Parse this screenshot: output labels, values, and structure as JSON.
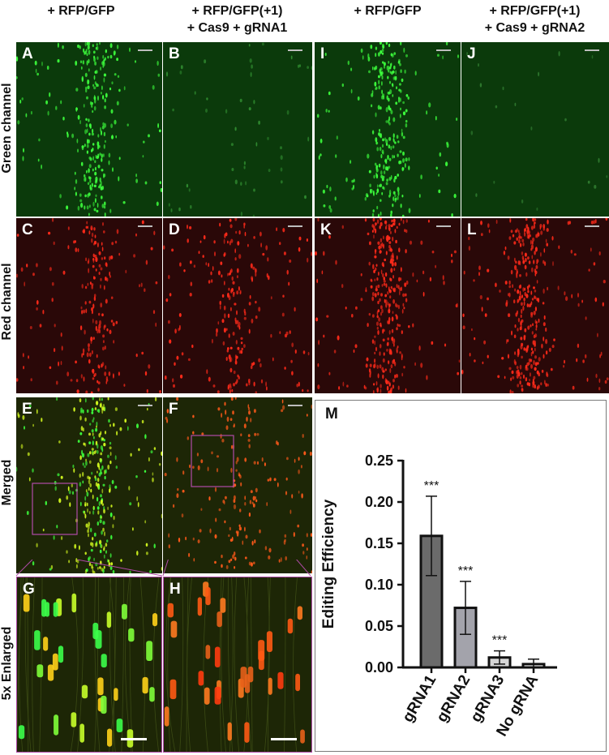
{
  "columns": {
    "c1": {
      "line1": "+ RFP/GFP",
      "line2": ""
    },
    "c2": {
      "line1": "+ RFP/GFP(+1)",
      "line2": "+ Cas9 + gRNA1"
    },
    "c3": {
      "line1": "+ RFP/GFP",
      "line2": ""
    },
    "c4": {
      "line1": "+ RFP/GFP(+1)",
      "line2": "+ Cas9 + gRNA2"
    }
  },
  "rows": {
    "green": "Green channel",
    "red": "Red channel",
    "merged": "Merged",
    "enlarged": "5x Enlarged"
  },
  "panels": {
    "A": "A",
    "B": "B",
    "C": "C",
    "D": "D",
    "E": "E",
    "F": "F",
    "G": "G",
    "H": "H",
    "I": "I",
    "J": "J",
    "K": "K",
    "L": "L",
    "M": "M"
  },
  "colors": {
    "green_signal": "#3dff3d",
    "red_signal": "#ff2a1a",
    "yellow_signal": "#d8ff20",
    "zoom_box": "#b04aa8"
  },
  "chart_data": {
    "type": "bar",
    "title": "",
    "xlabel": "",
    "ylabel": "Editing  Efficiency",
    "ylim": [
      0,
      0.25
    ],
    "yticks": [
      "0.00",
      "0.05",
      "0.10",
      "0.15",
      "0.20",
      "0.25"
    ],
    "categories": [
      "gRNA1",
      "gRNA2",
      "gRNA3",
      "No gRNA"
    ],
    "values": [
      0.159,
      0.072,
      0.012,
      0.004
    ],
    "errors": [
      0.048,
      0.032,
      0.008,
      0.006
    ],
    "annotations": [
      "***",
      "***",
      "***",
      ""
    ],
    "bar_colors": [
      "#6b6b6b",
      "#a3a3ab",
      "#d6d6d6",
      "#ffffff"
    ]
  }
}
